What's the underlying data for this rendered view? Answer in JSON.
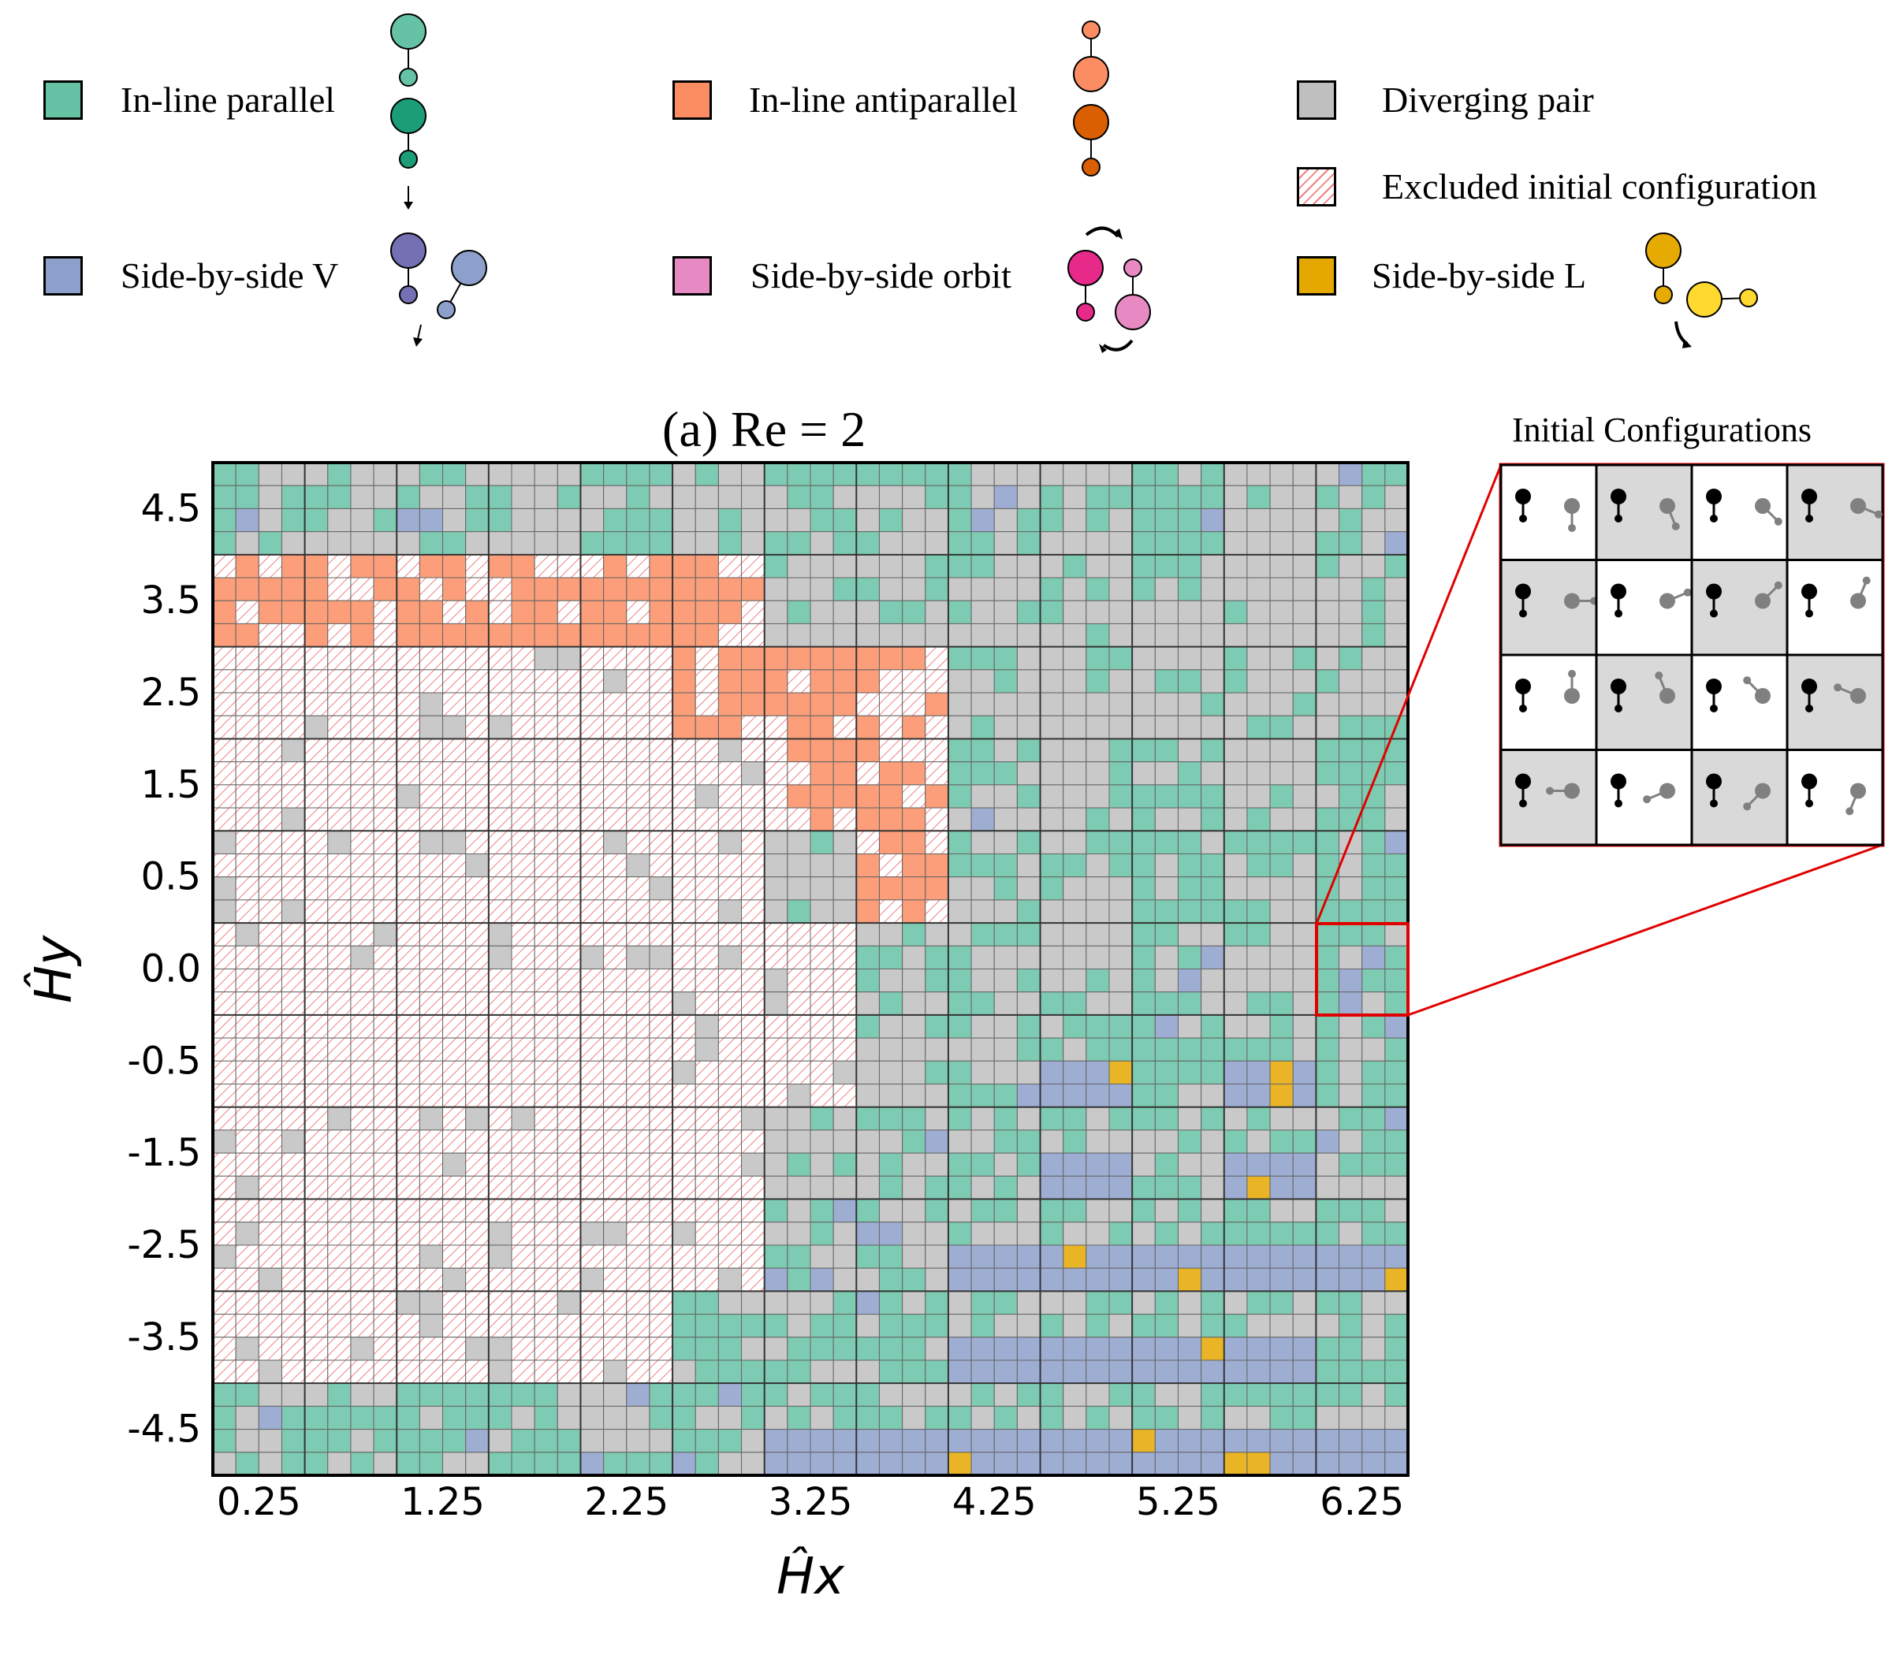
{
  "legend": {
    "in_line_parallel": {
      "label": "In-line parallel",
      "color": "#66c2a5"
    },
    "in_line_antiparallel": {
      "label": "In-line antiparallel",
      "color": "#fc8d62"
    },
    "diverging_pair": {
      "label": "Diverging pair",
      "color": "#bfbfbf"
    },
    "excluded": {
      "label": "Excluded initial configuration",
      "color": "#f08080"
    },
    "side_by_side_v": {
      "label": "Side-by-side V",
      "color": "#8da0cb"
    },
    "side_by_side_orbit": {
      "label": "Side-by-side orbit",
      "color": "#e78ac3"
    },
    "side_by_side_l": {
      "label": "Side-by-side L",
      "color": "#e5a800"
    }
  },
  "chart_data": {
    "type": "heatmap",
    "title": "(a) Re = 2",
    "xlabel": "Ĥx",
    "ylabel": "Ĥy",
    "x_ticks": [
      "0.25",
      "1.25",
      "2.25",
      "3.25",
      "4.25",
      "5.25",
      "6.25"
    ],
    "y_ticks": [
      "4.5",
      "3.5",
      "2.5",
      "1.5",
      "0.5",
      "0.0",
      "-0.5",
      "-1.5",
      "-2.5",
      "-3.5",
      "-4.5"
    ],
    "grid_cols": 13,
    "grid_rows": 11,
    "cells_per_block": 4,
    "category_codes": {
      "G": "Diverging pair",
      "P": "In-line parallel",
      "A": "In-line antiparallel",
      "V": "Side-by-side V",
      "L": "Side-by-side L",
      "X": "Excluded initial configuration"
    },
    "block_dominant": [
      "PGPGPGPGPGPGP",
      "AAAAAAGGGGGGG",
      "XXXXXAAAGGGGG",
      "XXXXXXAAPGPGP",
      "XXXXXXGAPGPGP",
      "XXXXXXXGPGPGP",
      "XXXXXXXGPVPVP",
      "XXXXXXGPPVPVP",
      "XXXXXXPPVVVVV",
      "XXXXXPPPVVVVP",
      "PPPPPPVVVVVVV"
    ],
    "inset": {
      "title": "Initial Configurations",
      "rows": 4,
      "cols": 4
    }
  }
}
